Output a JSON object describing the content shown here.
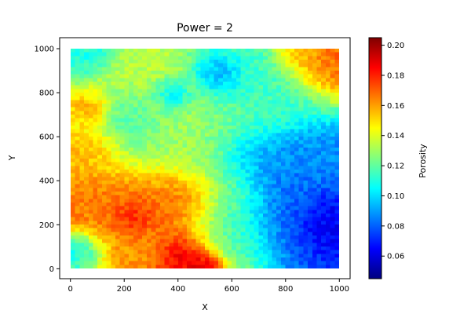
{
  "chart_data": {
    "type": "heatmap",
    "title": "Power = 2",
    "xlabel": "X",
    "ylabel": "Y",
    "xlim": [
      -40,
      1040
    ],
    "ylim": [
      -45,
      1050
    ],
    "data_extent": {
      "x": [
        0,
        1000
      ],
      "y": [
        0,
        1000
      ]
    },
    "xticks": [
      0,
      200,
      400,
      600,
      800,
      1000
    ],
    "yticks": [
      0,
      200,
      400,
      600,
      800,
      1000
    ],
    "colormap": "jet",
    "colorbar": {
      "label": "Porosity",
      "min": 0.045,
      "max": 0.205,
      "ticks": [
        0.06,
        0.08,
        0.1,
        0.12,
        0.14,
        0.16,
        0.18,
        0.2
      ],
      "tick_labels": [
        "0.06",
        "0.08",
        "0.10",
        "0.12",
        "0.14",
        "0.16",
        "0.18",
        "0.20"
      ]
    },
    "background_value": 0.118,
    "features": [
      {
        "x": 230,
        "y": 225,
        "value": 0.2,
        "radius": 50
      },
      {
        "x": 410,
        "y": 60,
        "value": 0.198,
        "radius": 55
      },
      {
        "x": 500,
        "y": 10,
        "value": 0.195,
        "radius": 35
      },
      {
        "x": 330,
        "y": 200,
        "value": 0.17,
        "radius": 150
      },
      {
        "x": 150,
        "y": 280,
        "value": 0.165,
        "radius": 90
      },
      {
        "x": 420,
        "y": 330,
        "value": 0.168,
        "radius": 70
      },
      {
        "x": 220,
        "y": 120,
        "value": 0.155,
        "radius": 90
      },
      {
        "x": 80,
        "y": 720,
        "value": 0.165,
        "radius": 40
      },
      {
        "x": 90,
        "y": 550,
        "value": 0.16,
        "radius": 70
      },
      {
        "x": 300,
        "y": 650,
        "value": 0.135,
        "radius": 150
      },
      {
        "x": 950,
        "y": 950,
        "value": 0.17,
        "radius": 80
      },
      {
        "x": 860,
        "y": 990,
        "value": 0.155,
        "radius": 50
      },
      {
        "x": 950,
        "y": 200,
        "value": 0.06,
        "radius": 60
      },
      {
        "x": 960,
        "y": 280,
        "value": 0.06,
        "radius": 60
      },
      {
        "x": 850,
        "y": 300,
        "value": 0.075,
        "radius": 120
      },
      {
        "x": 780,
        "y": 400,
        "value": 0.085,
        "radius": 120
      },
      {
        "x": 900,
        "y": 450,
        "value": 0.09,
        "radius": 90
      },
      {
        "x": 680,
        "y": 500,
        "value": 0.092,
        "radius": 70
      },
      {
        "x": 560,
        "y": 870,
        "value": 0.085,
        "radius": 50
      },
      {
        "x": 380,
        "y": 780,
        "value": 0.09,
        "radius": 40
      },
      {
        "x": 230,
        "y": 650,
        "value": 0.105,
        "radius": 80
      },
      {
        "x": 700,
        "y": 800,
        "value": 0.115,
        "radius": 130
      },
      {
        "x": 50,
        "y": 80,
        "value": 0.1,
        "radius": 50
      },
      {
        "x": 30,
        "y": 1000,
        "value": 0.11,
        "radius": 60
      },
      {
        "x": 600,
        "y": 200,
        "value": 0.11,
        "radius": 100
      },
      {
        "x": 500,
        "y": 560,
        "value": 0.125,
        "radius": 120
      },
      {
        "x": 600,
        "y": 350,
        "value": 0.13,
        "radius": 80
      }
    ]
  }
}
